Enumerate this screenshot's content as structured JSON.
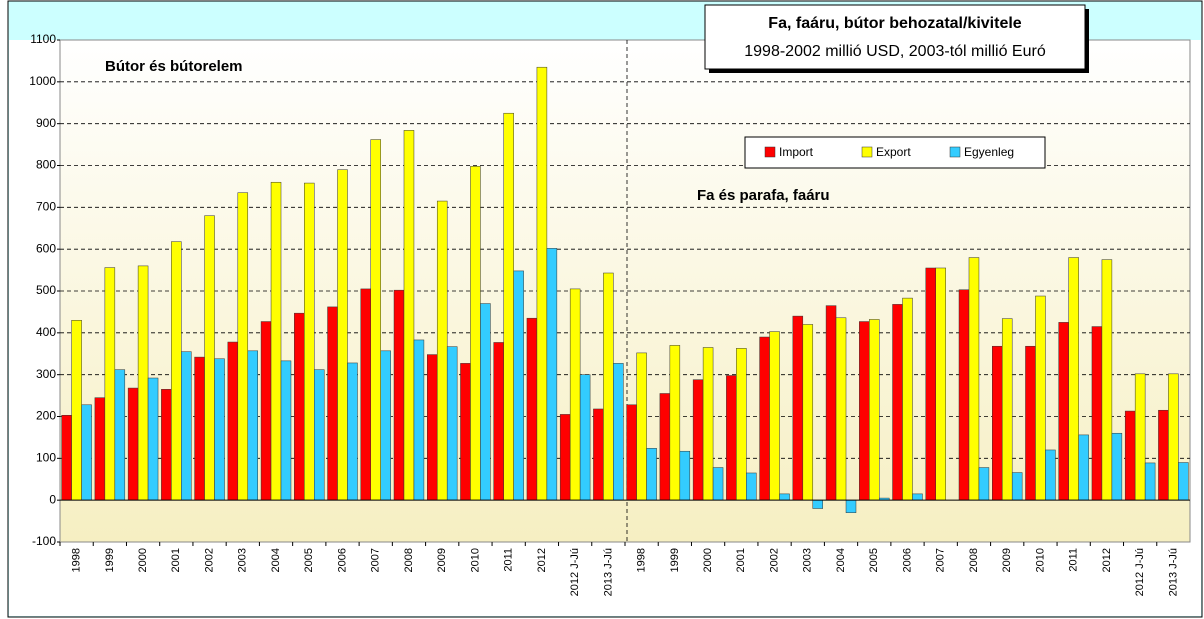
{
  "chart_data": {
    "type": "bar",
    "title": "Fa, faáru, bútor behozatal/kivitele",
    "subtitle": "1998-2002 millió USD, 2003-tól millió Euró",
    "annotations": [
      "Bútor és bútorelem",
      "Fa és parafa, faáru"
    ],
    "categories": [
      "1998",
      "1999",
      "2000",
      "2001",
      "2002",
      "2003",
      "2004",
      "2005",
      "2006",
      "2007",
      "2008",
      "2009",
      "2010",
      "2011",
      "2012",
      "2012 J-Jú",
      "2013 J-Jú",
      "1998",
      "1999",
      "2000",
      "2001",
      "2002",
      "2003",
      "2004",
      "2005",
      "2006",
      "2007",
      "2008",
      "2009",
      "2010",
      "2011",
      "2012",
      "2012 J-Jú",
      "2013 J-Jú"
    ],
    "series": [
      {
        "name": "Import",
        "color": "#ff0000",
        "values": [
          203,
          245,
          268,
          265,
          342,
          378,
          427,
          447,
          462,
          505,
          502,
          348,
          327,
          377,
          435,
          205,
          218,
          228,
          255,
          288,
          298,
          390,
          440,
          465,
          427,
          468,
          555,
          503,
          368,
          368,
          425,
          415,
          213,
          215
        ]
      },
      {
        "name": "Export",
        "color": "#ffff00",
        "values": [
          430,
          556,
          560,
          618,
          680,
          735,
          760,
          758,
          790,
          862,
          884,
          715,
          798,
          925,
          1035,
          505,
          543,
          352,
          370,
          365,
          363,
          403,
          420,
          436,
          432,
          483,
          555,
          580,
          434,
          488,
          580,
          575,
          302,
          302
        ]
      },
      {
        "name": "Egyenleg",
        "color": "#33ccff",
        "values": [
          228,
          312,
          292,
          355,
          338,
          357,
          333,
          312,
          328,
          357,
          383,
          367,
          470,
          548,
          602,
          300,
          327,
          124,
          117,
          78,
          65,
          15,
          -20,
          -30,
          5,
          15,
          0,
          78,
          66,
          120,
          156,
          160,
          89,
          90
        ]
      }
    ],
    "ylim": [
      -100,
      1100
    ],
    "yticks": [
      -100,
      0,
      100,
      200,
      300,
      400,
      500,
      600,
      700,
      800,
      900,
      1000,
      1100
    ],
    "grid": true
  }
}
